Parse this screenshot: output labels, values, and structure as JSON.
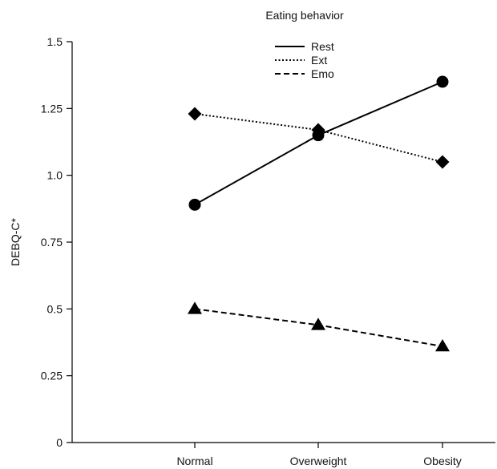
{
  "chart_data": {
    "type": "line",
    "title": "",
    "xlabel": "",
    "ylabel": "DEBQ-C*",
    "categories": [
      "Normal",
      "Overweight",
      "Obesity"
    ],
    "y_ticks": [
      "0",
      "0.25",
      "0.5",
      "0.75",
      "1.0",
      "1.25",
      "1.5"
    ],
    "y_tick_values": [
      0,
      0.25,
      0.5,
      0.75,
      1.0,
      1.25,
      1.5
    ],
    "ylim": [
      0,
      1.5
    ],
    "grid": false,
    "legend": {
      "title": "Eating behavior",
      "placement": "top-center"
    },
    "series": [
      {
        "name": "Rest",
        "values": [
          0.89,
          1.15,
          1.35
        ],
        "line_style": "solid",
        "marker": "circle"
      },
      {
        "name": "Ext",
        "values": [
          1.23,
          1.17,
          1.05
        ],
        "line_style": "dotted",
        "marker": "diamond"
      },
      {
        "name": "Emo",
        "values": [
          0.5,
          0.44,
          0.36
        ],
        "line_style": "dashed",
        "marker": "triangle"
      }
    ],
    "colors": {
      "line": "#000000",
      "text": "#111111"
    }
  }
}
